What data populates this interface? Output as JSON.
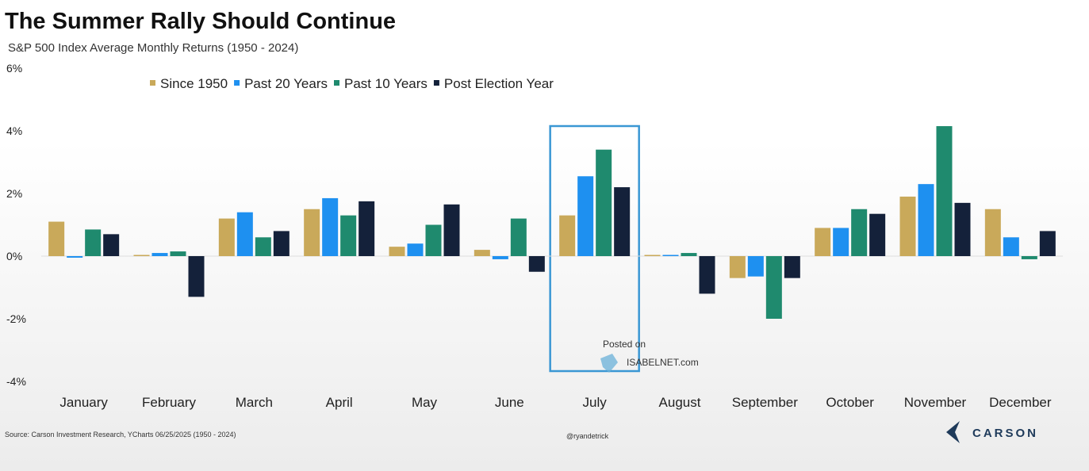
{
  "chart_data": {
    "type": "bar",
    "title": "The Summer Rally Should Continue",
    "subtitle": "S&P 500 Index Average Monthly Returns (1950 - 2024)",
    "y_ticks": [
      "6%",
      "4%",
      "2%",
      "0%",
      "-2%",
      "-4%"
    ],
    "ylim": [
      -4,
      6
    ],
    "grid": false,
    "legend_placement": "top",
    "categories": [
      "January",
      "February",
      "March",
      "April",
      "May",
      "June",
      "July",
      "August",
      "September",
      "October",
      "November",
      "December"
    ],
    "series": [
      {
        "name": "Since 1950",
        "color": "#c9a95a",
        "values": [
          1.1,
          0.0,
          1.2,
          1.5,
          0.3,
          0.2,
          1.3,
          0.0,
          -0.7,
          0.9,
          1.9,
          1.5
        ]
      },
      {
        "name": "Past 20 Years",
        "color": "#1e90f0",
        "values": [
          -0.05,
          0.1,
          1.4,
          1.85,
          0.4,
          -0.1,
          2.55,
          0.0,
          -0.65,
          0.9,
          2.3,
          0.6
        ]
      },
      {
        "name": "Past 10 Years",
        "color": "#1f8a6e",
        "values": [
          0.85,
          0.15,
          0.6,
          1.3,
          1.0,
          1.2,
          3.4,
          0.1,
          -2.0,
          1.5,
          4.15,
          -0.1
        ]
      },
      {
        "name": "Post Election Year",
        "color": "#14213a",
        "values": [
          0.7,
          -1.3,
          0.8,
          1.75,
          1.65,
          -0.5,
          2.2,
          -1.2,
          -0.7,
          1.35,
          1.7,
          0.8
        ]
      }
    ],
    "highlight_category": "July"
  },
  "source_text": "Source: Carson Investment Research, YCharts 06/25/2025 (1950 - 2024)",
  "watermark": {
    "line1": "Posted on",
    "line2": "ISABELNET.com"
  },
  "handle": "@ryandetrick",
  "brand": "CARSON"
}
